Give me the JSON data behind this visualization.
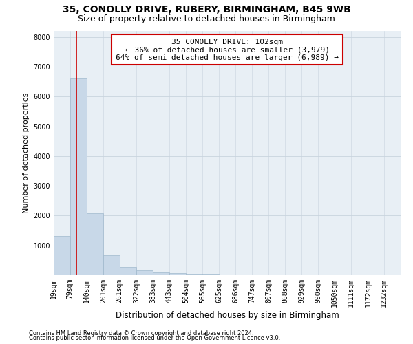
{
  "title1": "35, CONOLLY DRIVE, RUBERY, BIRMINGHAM, B45 9WB",
  "title2": "Size of property relative to detached houses in Birmingham",
  "xlabel": "Distribution of detached houses by size in Birmingham",
  "ylabel": "Number of detached properties",
  "footnote1": "Contains HM Land Registry data © Crown copyright and database right 2024.",
  "footnote2": "Contains public sector information licensed under the Open Government Licence v3.0.",
  "annotation_line1": "35 CONOLLY DRIVE: 102sqm",
  "annotation_line2": "← 36% of detached houses are smaller (3,979)",
  "annotation_line3": "64% of semi-detached houses are larger (6,989) →",
  "property_size": 102,
  "bar_left_edges": [
    19,
    79,
    140,
    201,
    261,
    322,
    383,
    443,
    504,
    565,
    625,
    686,
    747,
    807,
    868,
    929,
    990,
    1050,
    1111,
    1172
  ],
  "bar_widths": [
    60,
    61,
    61,
    60,
    61,
    61,
    60,
    61,
    61,
    60,
    61,
    61,
    60,
    61,
    61,
    61,
    60,
    61,
    61,
    60
  ],
  "bar_heights": [
    1310,
    6610,
    2080,
    680,
    280,
    155,
    95,
    60,
    55,
    50,
    5,
    5,
    5,
    5,
    5,
    5,
    5,
    5,
    5,
    5
  ],
  "bar_color": "#c8d8e8",
  "bar_edge_color": "#a0b8cc",
  "redline_color": "#cc0000",
  "annotation_box_edge": "#cc0000",
  "background_color": "#ffffff",
  "grid_color": "#c8d4de",
  "ylim": [
    0,
    8200
  ],
  "yticks": [
    0,
    1000,
    2000,
    3000,
    4000,
    5000,
    6000,
    7000,
    8000
  ],
  "tick_labels": [
    "19sqm",
    "79sqm",
    "140sqm",
    "201sqm",
    "261sqm",
    "322sqm",
    "383sqm",
    "443sqm",
    "504sqm",
    "565sqm",
    "625sqm",
    "686sqm",
    "747sqm",
    "807sqm",
    "868sqm",
    "929sqm",
    "990sqm",
    "1050sqm",
    "1111sqm",
    "1172sqm",
    "1232sqm"
  ],
  "title1_fontsize": 10,
  "title2_fontsize": 9,
  "xlabel_fontsize": 8.5,
  "ylabel_fontsize": 8,
  "annotation_fontsize": 8,
  "tick_fontsize": 7
}
